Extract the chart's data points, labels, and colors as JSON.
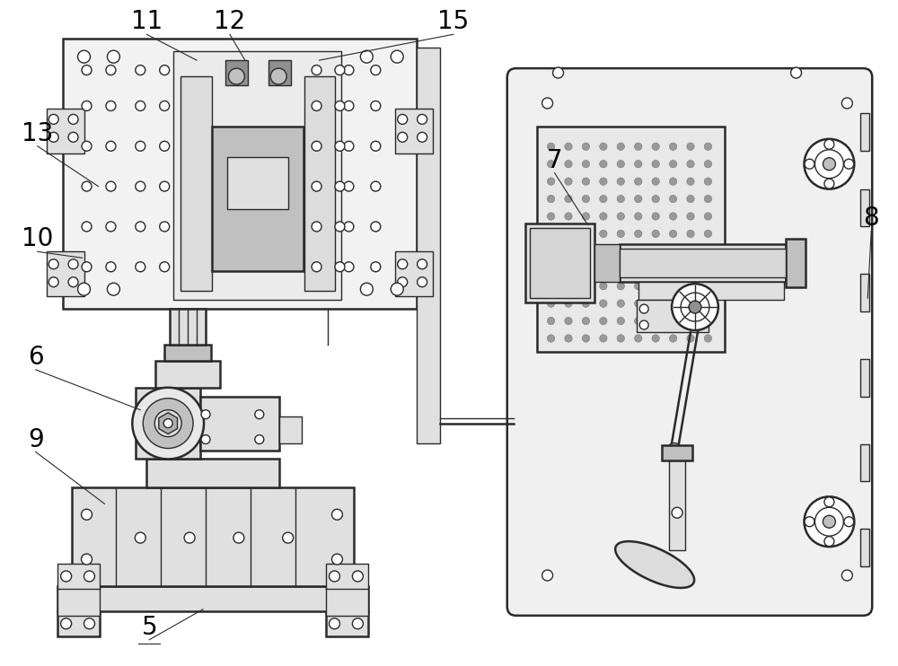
{
  "background_color": "#ffffff",
  "line_color": "#2a2a2a",
  "label_color": "#000000",
  "figure_width": 10.0,
  "figure_height": 7.42,
  "label_fontsize": 20,
  "lw": 1.0,
  "lw2": 1.8,
  "gl": "#e0e0e0",
  "gm": "#c0c0c0",
  "gd": "#909090",
  "ann_lw": 0.8
}
